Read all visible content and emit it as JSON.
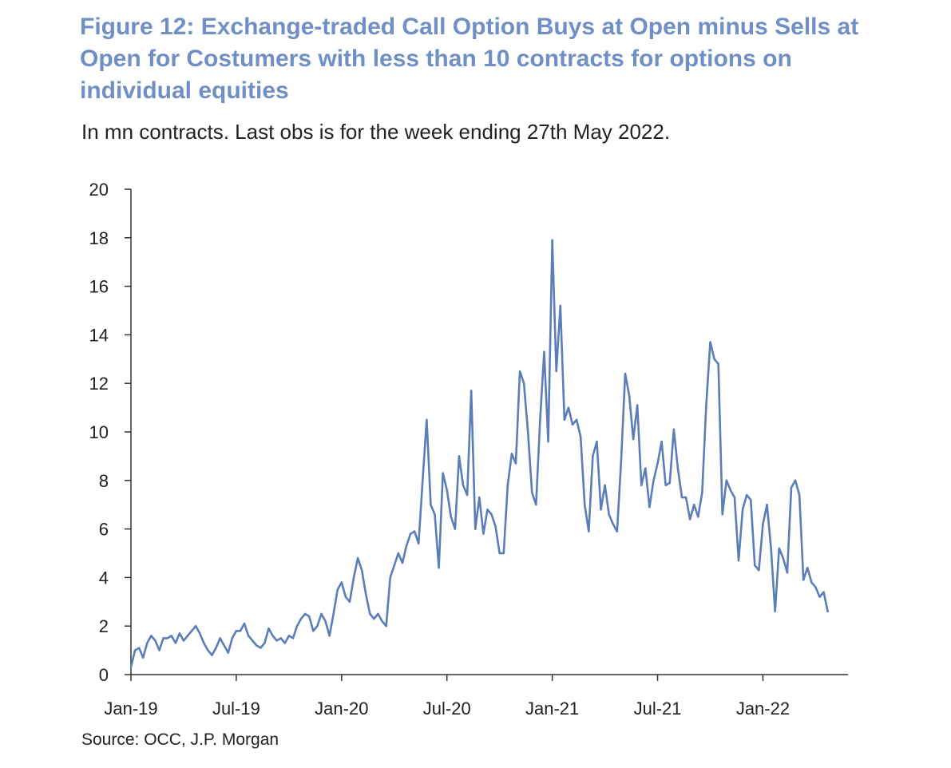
{
  "title": "Figure 12: Exchange-traded Call Option Buys at Open minus Sells at Open for Costumers with less than 10 contracts for options on individual equities",
  "subtitle": "In mn contracts. Last obs is for the week ending 27th May 2022.",
  "source": "Source:  OCC, J.P. Morgan",
  "colors": {
    "title": "#6F8FC5",
    "line": "#5B7DB8",
    "text": "#222222",
    "axis": "#333333"
  },
  "chart_data": {
    "type": "line",
    "title": "Figure 12: Exchange-traded Call Option Buys at Open minus Sells at Open for Costumers with less than 10 contracts for options on individual equities",
    "xlabel": "",
    "ylabel": "In mn contracts",
    "ylim": [
      0,
      20
    ],
    "yticks": [
      0,
      2,
      4,
      6,
      8,
      10,
      12,
      14,
      16,
      18,
      20
    ],
    "xlim": [
      0,
      177
    ],
    "xticks": [
      {
        "pos": 0,
        "label": "Jan-19"
      },
      {
        "pos": 26,
        "label": "Jul-19"
      },
      {
        "pos": 52,
        "label": "Jan-20"
      },
      {
        "pos": 78,
        "label": "Jul-20"
      },
      {
        "pos": 104,
        "label": "Jan-21"
      },
      {
        "pos": 130,
        "label": "Jul-21"
      },
      {
        "pos": 156,
        "label": "Jan-22"
      }
    ],
    "grid": false,
    "series": [
      {
        "name": "Call Option Buys at Open minus Sells at Open",
        "x_unit": "weeks since Jan-19",
        "values": [
          0.3,
          1.0,
          1.1,
          0.7,
          1.3,
          1.6,
          1.4,
          1.0,
          1.5,
          1.5,
          1.6,
          1.3,
          1.7,
          1.4,
          1.6,
          1.8,
          2.0,
          1.7,
          1.3,
          1.0,
          0.8,
          1.1,
          1.5,
          1.2,
          0.9,
          1.5,
          1.8,
          1.8,
          2.1,
          1.6,
          1.4,
          1.2,
          1.1,
          1.3,
          1.9,
          1.6,
          1.4,
          1.5,
          1.3,
          1.6,
          1.5,
          2.0,
          2.3,
          2.5,
          2.4,
          1.8,
          2.0,
          2.5,
          2.2,
          1.6,
          2.5,
          3.5,
          3.8,
          3.2,
          3.0,
          4.0,
          4.8,
          4.3,
          3.3,
          2.5,
          2.3,
          2.5,
          2.2,
          2.0,
          4.0,
          4.5,
          5.0,
          4.6,
          5.3,
          5.8,
          5.9,
          5.4,
          8.0,
          10.5,
          7.0,
          6.6,
          4.4,
          8.3,
          7.6,
          6.5,
          6.0,
          9.0,
          7.8,
          7.4,
          11.7,
          6.0,
          7.3,
          5.8,
          6.8,
          6.6,
          6.1,
          5.0,
          5.0,
          7.8,
          9.1,
          8.7,
          12.5,
          12.0,
          10.0,
          7.5,
          7.0,
          10.5,
          13.3,
          9.6,
          17.9,
          12.5,
          15.2,
          10.5,
          11.0,
          10.3,
          10.5,
          9.8,
          7.0,
          5.9,
          9.0,
          9.6,
          6.8,
          7.8,
          6.6,
          6.2,
          5.9,
          8.8,
          12.4,
          11.5,
          9.7,
          11.1,
          7.8,
          8.5,
          6.9,
          8.0,
          8.7,
          9.6,
          7.8,
          7.9,
          10.1,
          8.5,
          7.3,
          7.3,
          6.4,
          7.0,
          6.5,
          7.5,
          11.1,
          13.7,
          13.0,
          12.8,
          6.6,
          8.0,
          7.6,
          7.3,
          4.7,
          6.8,
          7.4,
          7.2,
          4.5,
          4.3,
          6.2,
          7.0,
          5.2,
          2.6,
          5.2,
          4.8,
          4.2,
          7.7,
          8.0,
          7.4,
          3.9,
          4.4,
          3.8,
          3.6,
          3.2,
          3.4,
          2.6
        ]
      }
    ]
  }
}
